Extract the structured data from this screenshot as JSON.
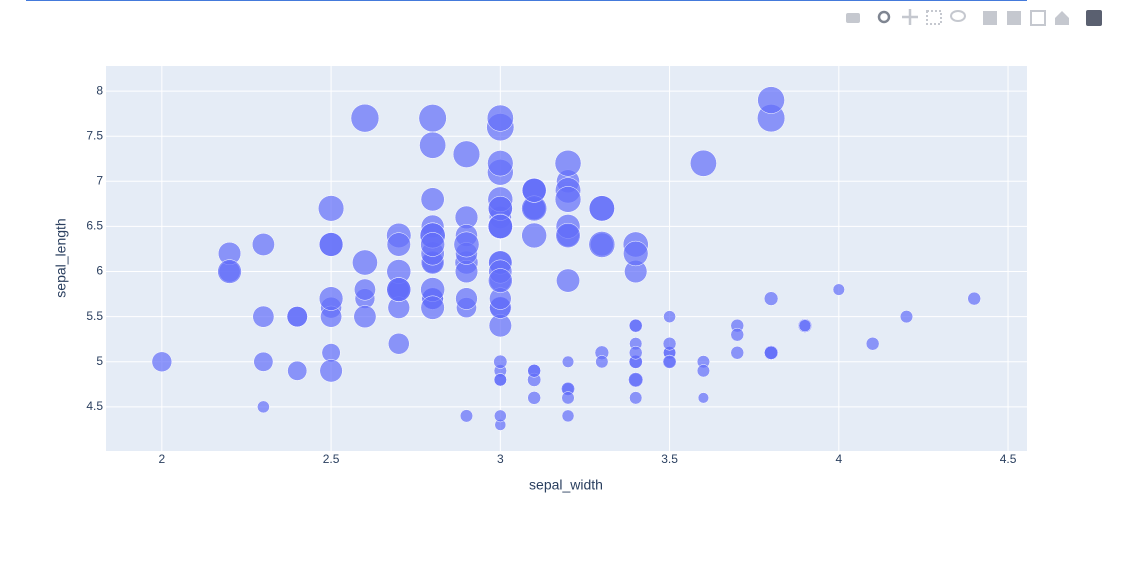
{
  "chart_data": {
    "type": "scatter",
    "x_label": "sepal_width",
    "y_label": "sepal_length",
    "color": "#636efa",
    "grid": true,
    "xlim": [
      1.835,
      4.556
    ],
    "xticks": [
      2,
      2.5,
      3,
      3.5,
      4,
      4.5
    ],
    "ylim": [
      4.011,
      8.278
    ],
    "yticks": [
      4.5,
      5,
      5.5,
      6,
      6.5,
      7,
      7.5,
      8
    ],
    "x": [
      3.5,
      3.0,
      3.2,
      3.1,
      3.6,
      3.9,
      3.4,
      3.4,
      2.9,
      3.1,
      3.7,
      3.4,
      3.0,
      3.0,
      4.0,
      4.4,
      3.9,
      3.5,
      3.8,
      3.8,
      3.4,
      3.7,
      3.6,
      3.3,
      3.4,
      3.0,
      3.4,
      3.5,
      3.4,
      3.2,
      3.1,
      3.4,
      4.1,
      4.2,
      3.1,
      3.2,
      3.5,
      3.6,
      3.0,
      3.4,
      3.5,
      2.3,
      3.2,
      3.5,
      3.8,
      3.0,
      3.8,
      3.2,
      3.7,
      3.3,
      3.2,
      3.2,
      3.1,
      2.3,
      2.8,
      2.8,
      3.3,
      2.4,
      2.9,
      2.7,
      2.0,
      3.0,
      2.2,
      2.9,
      2.9,
      3.1,
      3.0,
      2.7,
      2.2,
      2.5,
      3.2,
      2.8,
      2.5,
      2.8,
      2.9,
      3.0,
      2.8,
      3.0,
      2.9,
      2.6,
      2.4,
      2.4,
      2.7,
      2.7,
      3.0,
      3.4,
      3.1,
      2.3,
      3.0,
      2.5,
      2.6,
      3.0,
      2.6,
      2.3,
      2.7,
      3.0,
      2.9,
      2.9,
      2.5,
      2.8,
      3.3,
      2.7,
      3.0,
      2.9,
      3.0,
      3.0,
      2.5,
      2.9,
      2.5,
      3.6,
      3.2,
      2.7,
      3.0,
      2.5,
      2.8,
      3.2,
      3.0,
      3.8,
      2.6,
      2.2,
      3.2,
      2.8,
      2.8,
      2.7,
      3.3,
      3.2,
      2.8,
      3.0,
      2.8,
      3.0,
      2.8,
      3.8,
      2.8,
      2.8,
      2.6,
      3.0,
      3.4,
      3.1,
      3.0,
      3.1,
      3.1,
      3.1,
      2.7,
      3.2,
      3.3,
      3.0,
      2.5,
      3.0,
      3.4,
      3.0
    ],
    "values": [
      5.1,
      4.9,
      4.7,
      4.6,
      5.0,
      5.4,
      4.6,
      5.0,
      4.4,
      4.9,
      5.4,
      4.8,
      4.8,
      4.3,
      5.8,
      5.7,
      5.4,
      5.1,
      5.7,
      5.1,
      5.4,
      5.1,
      4.6,
      5.1,
      4.8,
      5.0,
      5.0,
      5.2,
      5.2,
      4.7,
      4.8,
      5.4,
      5.2,
      5.5,
      4.9,
      5.0,
      5.5,
      4.9,
      4.4,
      5.1,
      5.0,
      4.5,
      4.4,
      5.0,
      5.1,
      4.8,
      5.1,
      4.6,
      5.3,
      5.0,
      7.0,
      6.4,
      6.9,
      5.5,
      6.5,
      5.7,
      6.3,
      4.9,
      6.6,
      5.2,
      5.0,
      5.9,
      6.0,
      6.1,
      5.6,
      6.7,
      5.6,
      5.8,
      6.2,
      5.6,
      5.9,
      6.1,
      6.3,
      6.1,
      6.4,
      6.6,
      6.8,
      6.7,
      6.0,
      5.7,
      5.5,
      5.5,
      5.8,
      6.0,
      5.4,
      6.0,
      6.7,
      6.3,
      5.6,
      5.5,
      5.5,
      6.1,
      5.8,
      5.0,
      5.6,
      5.7,
      5.7,
      6.2,
      5.1,
      5.7,
      6.3,
      5.8,
      7.1,
      6.3,
      6.5,
      7.6,
      4.9,
      7.3,
      6.7,
      7.2,
      6.5,
      6.4,
      6.8,
      5.7,
      5.8,
      6.4,
      6.5,
      7.7,
      7.7,
      6.0,
      6.9,
      5.6,
      7.7,
      6.3,
      6.7,
      7.2,
      6.2,
      6.1,
      6.4,
      7.2,
      7.4,
      7.9,
      6.4,
      6.3,
      6.1,
      7.7,
      6.3,
      6.4,
      6.0,
      6.9,
      6.7,
      6.9,
      5.8,
      6.8,
      6.7,
      6.7,
      6.3,
      6.5,
      6.2,
      5.9
    ],
    "sizes": [
      1.4,
      1.4,
      1.3,
      1.5,
      1.4,
      1.7,
      1.4,
      1.5,
      1.4,
      1.5,
      1.5,
      1.6,
      1.4,
      1.1,
      1.2,
      1.5,
      1.3,
      1.4,
      1.7,
      1.5,
      1.7,
      1.5,
      1.0,
      1.7,
      1.9,
      1.6,
      1.6,
      1.5,
      1.4,
      1.6,
      1.6,
      1.5,
      1.5,
      1.4,
      1.5,
      1.2,
      1.3,
      1.4,
      1.3,
      1.5,
      1.3,
      1.3,
      1.3,
      1.6,
      1.9,
      1.4,
      1.6,
      1.4,
      1.5,
      1.4,
      4.7,
      4.5,
      4.9,
      4.0,
      4.6,
      4.5,
      4.7,
      3.3,
      4.6,
      3.9,
      3.5,
      4.2,
      4.0,
      4.7,
      3.6,
      4.4,
      4.5,
      4.1,
      4.5,
      3.9,
      4.8,
      4.0,
      4.9,
      4.7,
      4.3,
      4.4,
      4.8,
      5.0,
      4.5,
      3.5,
      3.8,
      3.7,
      3.9,
      5.1,
      4.5,
      4.5,
      4.7,
      4.4,
      4.1,
      4.0,
      4.4,
      4.6,
      4.0,
      3.3,
      4.2,
      4.2,
      4.2,
      4.3,
      3.0,
      4.1,
      6.0,
      5.1,
      5.9,
      5.6,
      5.8,
      6.6,
      4.5,
      6.3,
      5.8,
      6.1,
      5.1,
      5.3,
      5.5,
      5.0,
      5.1,
      5.3,
      5.5,
      6.7,
      6.9,
      5.0,
      5.7,
      4.9,
      6.7,
      4.9,
      5.7,
      6.0,
      4.8,
      4.9,
      5.6,
      5.8,
      6.1,
      6.4,
      5.6,
      5.1,
      5.6,
      6.1,
      5.6,
      5.5,
      4.8,
      5.4,
      5.6,
      5.1,
      5.1,
      5.9,
      5.7,
      5.2,
      5.0,
      5.2,
      5.4,
      5.1
    ]
  }
}
